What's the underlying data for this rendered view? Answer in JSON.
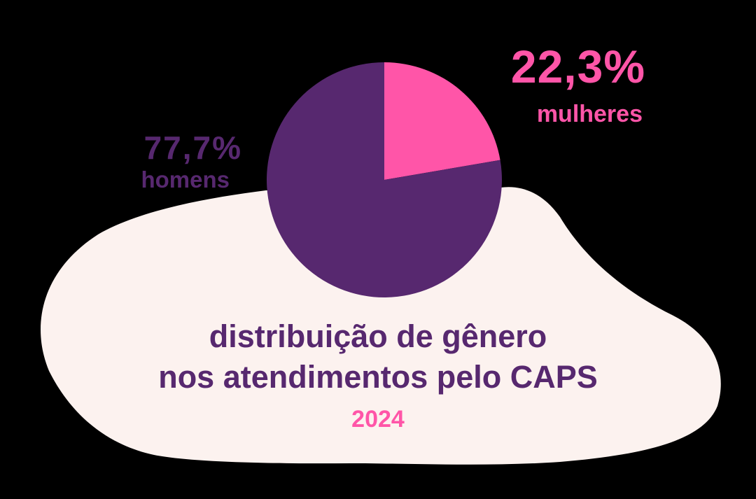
{
  "colors": {
    "background": "#000000",
    "blob": "#FCF2EF",
    "men": "#57286F",
    "women": "#FF55A8"
  },
  "labels": {
    "women_pct": "22,3%",
    "women_label": "mulheres",
    "men_pct": "77,7%",
    "men_label": "homens"
  },
  "title": {
    "line1": "distribuição de gênero",
    "line2": "nos atendimentos pelo CAPS",
    "year": "2024"
  },
  "chart_data": {
    "type": "pie",
    "title": "distribuição de gênero nos atendimentos pelo CAPS",
    "subtitle": "2024",
    "categories": [
      "mulheres",
      "homens"
    ],
    "values": [
      22.3,
      77.7
    ],
    "unit": "%",
    "colors": [
      "#FF55A8",
      "#57286F"
    ],
    "start_angle_deg": 0,
    "direction": "clockwise",
    "legend": "none (direct labels)"
  }
}
